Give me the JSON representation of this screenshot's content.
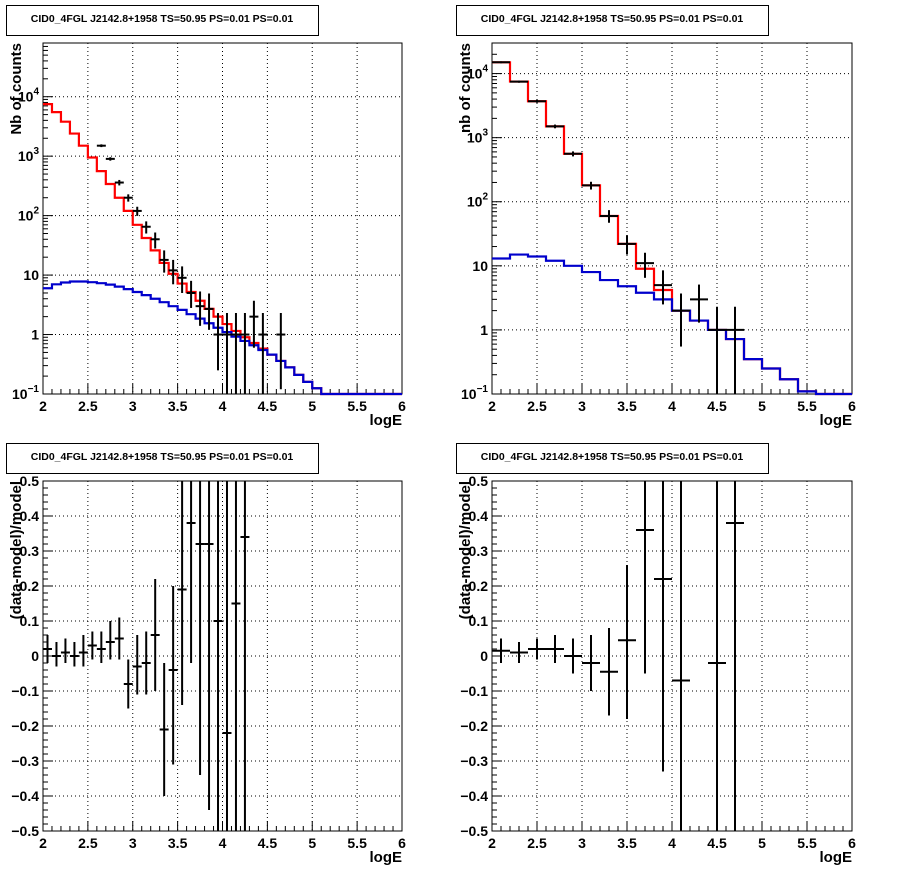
{
  "colors": {
    "model_total": "#ff0000",
    "model_source": "#0000cc",
    "data": "#000000",
    "grid": "#000000"
  },
  "chart_data": [
    {
      "type": "line",
      "title": "CID0_4FGL J2142.8+1958 TS=50.95 PS=0.01 PS=0.01",
      "xlabel": "logE",
      "ylabel": "Nb of counts",
      "yscale": "log",
      "xlim": [
        2,
        6
      ],
      "ylim": [
        0.1,
        80000
      ],
      "grid": true,
      "xticks": [
        "2",
        "2.5",
        "3",
        "3.5",
        "4",
        "4.5",
        "5",
        "5.5",
        "6"
      ],
      "yticks": [
        {
          "v": 0.1,
          "b": "10",
          "e": "−1"
        },
        {
          "v": 1,
          "b": "1",
          "e": ""
        },
        {
          "v": 10,
          "b": "10",
          "e": ""
        },
        {
          "v": 100,
          "b": "10",
          "e": "2"
        },
        {
          "v": 1000,
          "b": "10",
          "e": "3"
        },
        {
          "v": 10000,
          "b": "10",
          "e": "4"
        }
      ],
      "bin_width": 0.1,
      "bin_start": 2.0,
      "series": [
        {
          "key": "model_total",
          "values": [
            7500,
            5500,
            3800,
            2400,
            1500,
            950,
            560,
            340,
            200,
            120,
            70,
            42,
            26,
            16,
            10.5,
            7.2,
            5.2,
            3.7,
            2.7,
            2.0,
            1.5,
            1.15,
            0.9,
            0.72,
            0.58,
            0.46,
            0.36,
            0.28,
            0.21,
            0.16,
            0.125,
            0.1,
            0.1,
            0.1,
            0.1,
            0.1,
            0.1,
            0.1,
            0.1,
            0.1
          ]
        },
        {
          "key": "model_source",
          "values": [
            6,
            7,
            7.5,
            7.8,
            7.8,
            7.6,
            7.3,
            6.9,
            6.4,
            5.8,
            5.2,
            4.6,
            4.0,
            3.5,
            3.0,
            2.6,
            2.2,
            1.85,
            1.55,
            1.3,
            1.1,
            0.92,
            0.78,
            0.66,
            0.55,
            0.46,
            0.36,
            0.28,
            0.21,
            0.16,
            0.125,
            0.1,
            0.1,
            0.1,
            0.1,
            0.1,
            0.1,
            0.1,
            0.1,
            0.1
          ]
        }
      ],
      "data_points": [
        {
          "x": 2.65,
          "y": 1500,
          "lo": 1420,
          "hi": 1580
        },
        {
          "x": 2.75,
          "y": 900,
          "lo": 840,
          "hi": 960
        },
        {
          "x": 2.85,
          "y": 360,
          "lo": 322,
          "hi": 398
        },
        {
          "x": 2.95,
          "y": 200,
          "lo": 172,
          "hi": 228
        },
        {
          "x": 3.05,
          "y": 120,
          "lo": 99,
          "hi": 141
        },
        {
          "x": 3.15,
          "y": 65,
          "lo": 50,
          "hi": 80
        },
        {
          "x": 3.25,
          "y": 40,
          "lo": 28,
          "hi": 52
        },
        {
          "x": 3.35,
          "y": 18,
          "lo": 11,
          "hi": 26
        },
        {
          "x": 3.45,
          "y": 12,
          "lo": 7,
          "hi": 18
        },
        {
          "x": 3.55,
          "y": 9,
          "lo": 5,
          "hi": 14
        },
        {
          "x": 3.65,
          "y": 5,
          "lo": 2.8,
          "hi": 8
        },
        {
          "x": 3.75,
          "y": 3,
          "lo": 1.4,
          "hi": 5.3
        },
        {
          "x": 3.85,
          "y": 2.7,
          "lo": 1.2,
          "hi": 4.9
        },
        {
          "x": 3.95,
          "y": 1,
          "lo": 0.25,
          "hi": 2.3
        },
        {
          "x": 4.05,
          "y": 1,
          "lo": 0.1,
          "hi": 2.3
        },
        {
          "x": 4.15,
          "y": 1,
          "lo": 0.1,
          "hi": 2.3
        },
        {
          "x": 4.25,
          "y": 1,
          "lo": 0.1,
          "hi": 2.3
        },
        {
          "x": 4.35,
          "y": 2,
          "lo": 0.6,
          "hi": 3.7
        },
        {
          "x": 4.45,
          "y": 1,
          "lo": 0.1,
          "hi": 2.3
        },
        {
          "x": 4.65,
          "y": 1,
          "lo": 0.12,
          "hi": 2.3
        }
      ]
    },
    {
      "type": "line",
      "title": "CID0_4FGL J2142.8+1958 TS=50.95 PS=0.01 PS=0.01",
      "xlabel": "logE",
      "ylabel": "nb of counts",
      "yscale": "log",
      "xlim": [
        2,
        6
      ],
      "ylim": [
        0.1,
        30000
      ],
      "grid": true,
      "xticks": [
        "2",
        "2.5",
        "3",
        "3.5",
        "4",
        "4.5",
        "5",
        "5.5",
        "6"
      ],
      "yticks": [
        {
          "v": 0.1,
          "b": "10",
          "e": "−1"
        },
        {
          "v": 1,
          "b": "1",
          "e": ""
        },
        {
          "v": 10,
          "b": "10",
          "e": ""
        },
        {
          "v": 100,
          "b": "10",
          "e": "2"
        },
        {
          "v": 1000,
          "b": "10",
          "e": "3"
        },
        {
          "v": 10000,
          "b": "10",
          "e": "4"
        }
      ],
      "bin_width": 0.2,
      "bin_start": 2.0,
      "series": [
        {
          "key": "model_total",
          "values": [
            15000,
            7500,
            3700,
            1500,
            560,
            180,
            60,
            22,
            9,
            4.2,
            2.0,
            1.4,
            1.0,
            0.72,
            0.35,
            0.25,
            0.17,
            0.11,
            0.1,
            0.1
          ]
        },
        {
          "key": "model_source",
          "values": [
            13,
            15,
            14,
            12,
            10,
            8,
            6,
            4.8,
            3.8,
            3,
            2.0,
            1.4,
            1.0,
            0.72,
            0.35,
            0.25,
            0.17,
            0.11,
            0.1,
            0.1
          ]
        }
      ],
      "data_points": [
        {
          "x": 2.1,
          "y": 15000,
          "lo": 14500,
          "hi": 15500
        },
        {
          "x": 2.3,
          "y": 7500,
          "lo": 7200,
          "hi": 7800
        },
        {
          "x": 2.5,
          "y": 3700,
          "lo": 3500,
          "hi": 3900
        },
        {
          "x": 2.7,
          "y": 1500,
          "lo": 1400,
          "hi": 1600
        },
        {
          "x": 2.9,
          "y": 560,
          "lo": 510,
          "hi": 610
        },
        {
          "x": 3.1,
          "y": 180,
          "lo": 155,
          "hi": 205
        },
        {
          "x": 3.3,
          "y": 60,
          "lo": 47,
          "hi": 74
        },
        {
          "x": 3.5,
          "y": 22,
          "lo": 15,
          "hi": 30
        },
        {
          "x": 3.7,
          "y": 11,
          "lo": 6.5,
          "hi": 16
        },
        {
          "x": 3.9,
          "y": 5,
          "lo": 2.5,
          "hi": 8.5
        },
        {
          "x": 4.1,
          "y": 2,
          "lo": 0.55,
          "hi": 3.7
        },
        {
          "x": 4.3,
          "y": 3,
          "lo": 1.3,
          "hi": 5.1
        },
        {
          "x": 4.5,
          "y": 1,
          "lo": 0.1,
          "hi": 2.3
        },
        {
          "x": 4.7,
          "y": 1,
          "lo": 0.1,
          "hi": 2.3
        }
      ]
    },
    {
      "type": "scatter",
      "title": "CID0_4FGL J2142.8+1958 TS=50.95 PS=0.01 PS=0.01",
      "xlabel": "logE",
      "ylabel": "(data-model)/model",
      "yscale": "linear",
      "xlim": [
        2,
        6
      ],
      "ylim": [
        -0.5,
        0.5
      ],
      "grid": true,
      "xticks": [
        "2",
        "2.5",
        "3",
        "3.5",
        "4",
        "4.5",
        "5",
        "5.5",
        "6"
      ],
      "yticks_linear": [
        "−0.5",
        "−0.4",
        "−0.3",
        "−0.2",
        "−0.1",
        "0",
        "0.1",
        "0.2",
        "0.3",
        "0.4",
        "0.5"
      ],
      "bin_width": 0.1,
      "points": [
        {
          "x": 2.05,
          "y": 0.02,
          "lo": -0.02,
          "hi": 0.06
        },
        {
          "x": 2.15,
          "y": 0.0,
          "lo": -0.03,
          "hi": 0.04
        },
        {
          "x": 2.25,
          "y": 0.01,
          "lo": -0.02,
          "hi": 0.05
        },
        {
          "x": 2.35,
          "y": 0.0,
          "lo": -0.03,
          "hi": 0.04
        },
        {
          "x": 2.45,
          "y": 0.01,
          "lo": -0.03,
          "hi": 0.06
        },
        {
          "x": 2.55,
          "y": 0.03,
          "lo": -0.01,
          "hi": 0.07
        },
        {
          "x": 2.65,
          "y": 0.02,
          "lo": -0.02,
          "hi": 0.07
        },
        {
          "x": 2.75,
          "y": 0.04,
          "lo": -0.01,
          "hi": 0.1
        },
        {
          "x": 2.85,
          "y": 0.05,
          "lo": -0.01,
          "hi": 0.11
        },
        {
          "x": 2.95,
          "y": -0.08,
          "lo": -0.15,
          "hi": -0.01
        },
        {
          "x": 3.05,
          "y": -0.03,
          "lo": -0.11,
          "hi": 0.06
        },
        {
          "x": 3.15,
          "y": -0.02,
          "lo": -0.11,
          "hi": 0.07
        },
        {
          "x": 3.25,
          "y": 0.06,
          "lo": -0.1,
          "hi": 0.22
        },
        {
          "x": 3.35,
          "y": -0.21,
          "lo": -0.4,
          "hi": -0.02
        },
        {
          "x": 3.45,
          "y": -0.04,
          "lo": -0.31,
          "hi": 0.2
        },
        {
          "x": 3.55,
          "y": 0.19,
          "lo": -0.14,
          "hi": 0.5
        },
        {
          "x": 3.65,
          "y": 0.38,
          "lo": -0.02,
          "hi": 0.5
        },
        {
          "x": 3.75,
          "y": 0.32,
          "lo": -0.34,
          "hi": 0.5
        },
        {
          "x": 3.85,
          "y": 0.32,
          "lo": -0.44,
          "hi": 0.5
        },
        {
          "x": 3.95,
          "y": 0.1,
          "lo": -0.5,
          "hi": 0.5
        },
        {
          "x": 4.05,
          "y": -0.22,
          "lo": -0.5,
          "hi": 0.5
        },
        {
          "x": 4.15,
          "y": 0.15,
          "lo": -0.5,
          "hi": 0.5
        },
        {
          "x": 4.25,
          "y": 0.34,
          "lo": -0.5,
          "hi": 0.5
        }
      ]
    },
    {
      "type": "scatter",
      "title": "CID0_4FGL J2142.8+1958 TS=50.95 PS=0.01 PS=0.01",
      "xlabel": "logE",
      "ylabel": "(data-model)/model",
      "yscale": "linear",
      "xlim": [
        2,
        6
      ],
      "ylim": [
        -0.5,
        0.5
      ],
      "grid": true,
      "xticks": [
        "2",
        "2.5",
        "3",
        "3.5",
        "4",
        "4.5",
        "5",
        "5.5",
        "6"
      ],
      "yticks_linear": [
        "−0.5",
        "−0.4",
        "−0.3",
        "−0.2",
        "−0.1",
        "0",
        "0.1",
        "0.2",
        "0.3",
        "0.4",
        "0.5"
      ],
      "bin_width": 0.2,
      "points": [
        {
          "x": 2.1,
          "y": 0.015,
          "lo": -0.02,
          "hi": 0.05
        },
        {
          "x": 2.3,
          "y": 0.01,
          "lo": -0.02,
          "hi": 0.04
        },
        {
          "x": 2.5,
          "y": 0.02,
          "lo": -0.01,
          "hi": 0.05
        },
        {
          "x": 2.7,
          "y": 0.02,
          "lo": -0.02,
          "hi": 0.06
        },
        {
          "x": 2.9,
          "y": 0.0,
          "lo": -0.05,
          "hi": 0.05
        },
        {
          "x": 3.1,
          "y": -0.02,
          "lo": -0.1,
          "hi": 0.06
        },
        {
          "x": 3.3,
          "y": -0.045,
          "lo": -0.17,
          "hi": 0.08
        },
        {
          "x": 3.5,
          "y": 0.045,
          "lo": -0.18,
          "hi": 0.26
        },
        {
          "x": 3.7,
          "y": 0.36,
          "lo": -0.05,
          "hi": 0.5
        },
        {
          "x": 3.9,
          "y": 0.22,
          "lo": -0.33,
          "hi": 0.5
        },
        {
          "x": 4.1,
          "y": -0.07,
          "lo": -0.5,
          "hi": 0.5
        },
        {
          "x": 4.5,
          "y": -0.02,
          "lo": -0.5,
          "hi": 0.5
        },
        {
          "x": 4.7,
          "y": 0.38,
          "lo": -0.5,
          "hi": 0.5
        }
      ]
    }
  ]
}
